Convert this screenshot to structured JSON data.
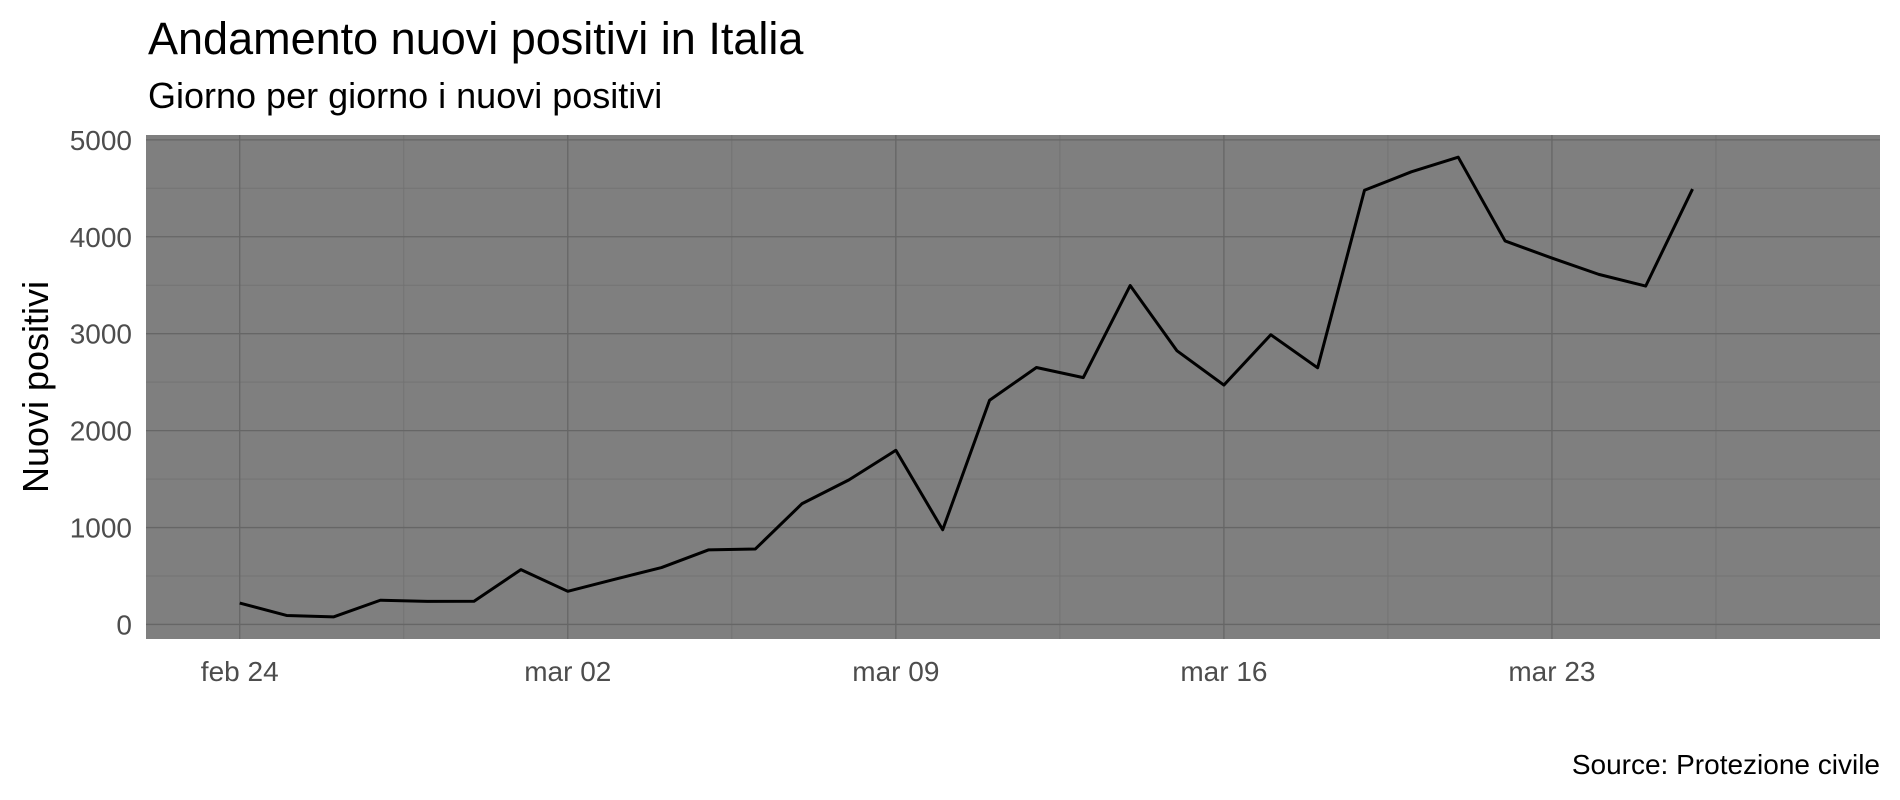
{
  "chart_data": {
    "type": "line",
    "title": "Andamento nuovi positivi in Italia",
    "subtitle": "Giorno per giorno i nuovi positivi",
    "xlabel": "",
    "ylabel": "Nuovi positivi",
    "caption": "Source: Protezione civile",
    "x_ticks": [
      {
        "date": "2020-02-24",
        "label": "feb 24"
      },
      {
        "date": "2020-03-02",
        "label": "mar 02"
      },
      {
        "date": "2020-03-09",
        "label": "mar 09"
      },
      {
        "date": "2020-03-16",
        "label": "mar 16"
      },
      {
        "date": "2020-03-23",
        "label": "mar 23"
      }
    ],
    "xlim": [
      "2020-02-22",
      "2020-03-30"
    ],
    "y_ticks": [
      0,
      1000,
      2000,
      3000,
      4000,
      5000
    ],
    "ylim": [
      -150,
      5050
    ],
    "grid": true,
    "legend": "none",
    "colors": {
      "panel_background": "#7f7f7f",
      "grid_major": "#666666",
      "grid_minor": "#737373",
      "line": "#000000",
      "tick_text": "#4d4d4d"
    },
    "series": [
      {
        "x": [
          "2020-02-24",
          "2020-02-25",
          "2020-02-26",
          "2020-02-27",
          "2020-02-28",
          "2020-02-29",
          "2020-03-01",
          "2020-03-02",
          "2020-03-03",
          "2020-03-04",
          "2020-03-05",
          "2020-03-06",
          "2020-03-07",
          "2020-03-08",
          "2020-03-09",
          "2020-03-10",
          "2020-03-11",
          "2020-03-12",
          "2020-03-13",
          "2020-03-14",
          "2020-03-15",
          "2020-03-16",
          "2020-03-17",
          "2020-03-18",
          "2020-03-19",
          "2020-03-20",
          "2020-03-21",
          "2020-03-22",
          "2020-03-23",
          "2020-03-24",
          "2020-03-25",
          "2020-03-26"
        ],
        "values": [
          221,
          93,
          78,
          250,
          238,
          240,
          566,
          342,
          466,
          587,
          769,
          778,
          1247,
          1492,
          1797,
          977,
          2313,
          2651,
          2547,
          3497,
          2823,
          2470,
          2989,
          2648,
          4480,
          4670,
          4821,
          3957,
          3780,
          3612,
          3491,
          4492
        ]
      }
    ]
  }
}
